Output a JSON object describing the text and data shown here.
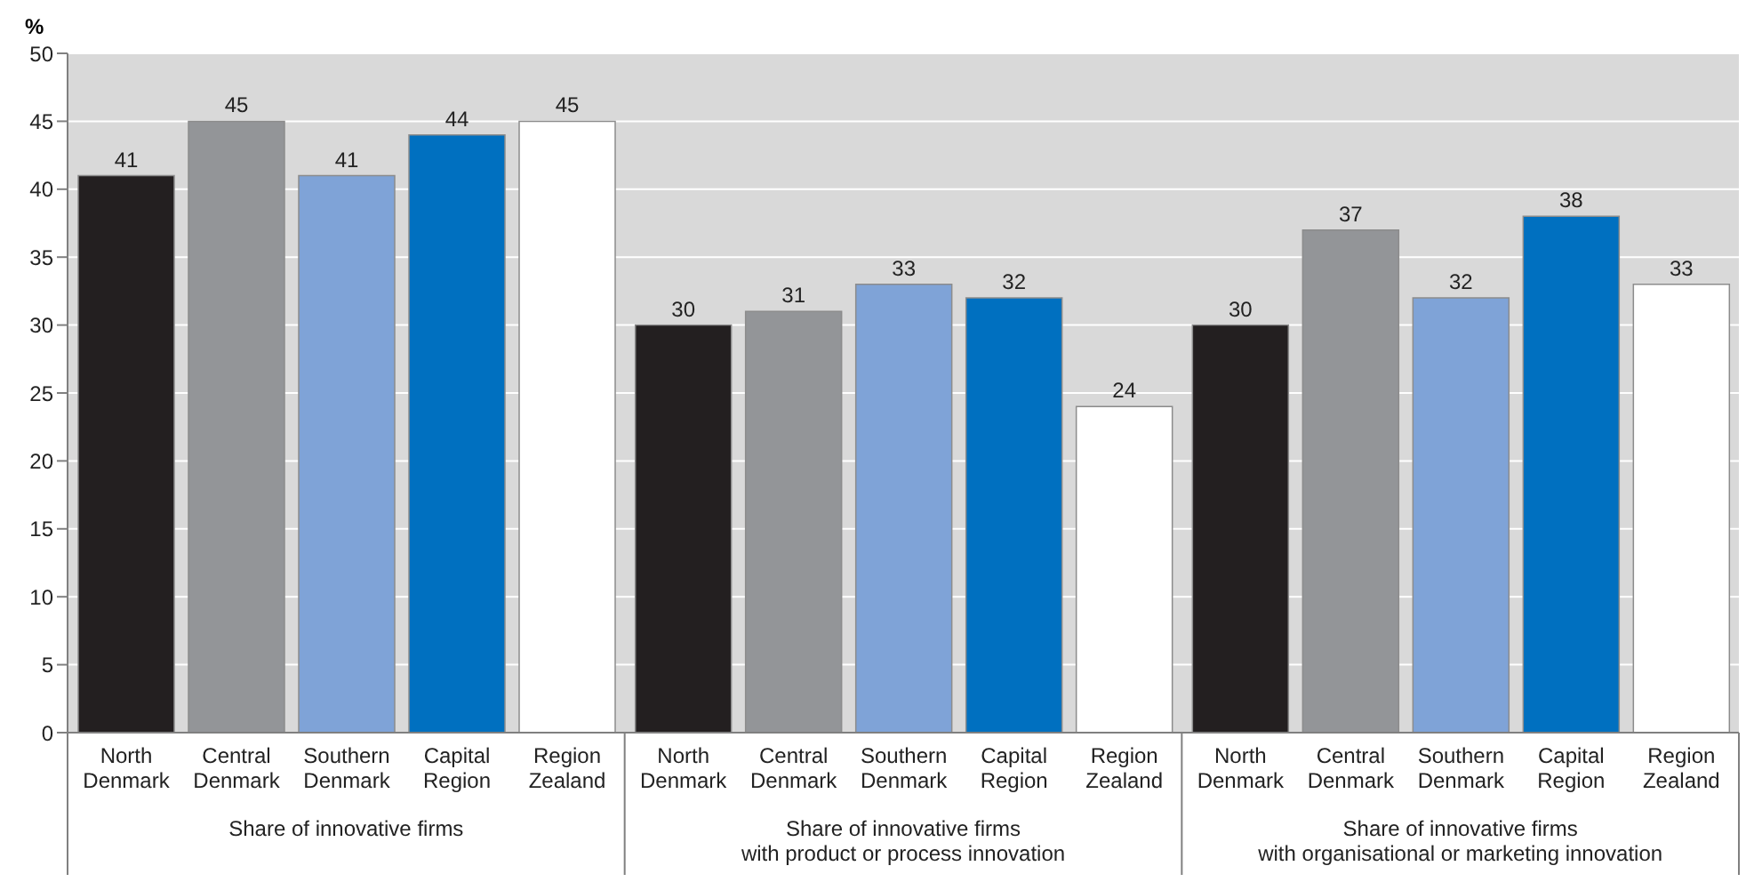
{
  "chart_data": {
    "type": "bar",
    "ylabel": "%",
    "categories": [
      "Share of innovative firms",
      "Share of innovative firms\nwith product or process innovation",
      "Share of innovative firms\nwith organisational or marketing innovation"
    ],
    "series": [
      {
        "name": "North Denmark",
        "color": "#231f20",
        "values": [
          41,
          30,
          30
        ]
      },
      {
        "name": "Central Denmark",
        "color": "#939598",
        "values": [
          45,
          31,
          37
        ]
      },
      {
        "name": "Southern Denmark",
        "color": "#7fa3d7",
        "values": [
          41,
          33,
          32
        ]
      },
      {
        "name": "Capital Region",
        "color": "#0070c0",
        "values": [
          44,
          32,
          38
        ]
      },
      {
        "name": "Region Zealand",
        "color": "#ffffff",
        "values": [
          45,
          24,
          33
        ]
      }
    ],
    "ylim": [
      0,
      50
    ],
    "yticks": [
      0,
      5,
      10,
      15,
      20,
      25,
      30,
      35,
      40,
      45,
      50
    ],
    "grid": "y",
    "legend": false,
    "data_labels": true
  }
}
